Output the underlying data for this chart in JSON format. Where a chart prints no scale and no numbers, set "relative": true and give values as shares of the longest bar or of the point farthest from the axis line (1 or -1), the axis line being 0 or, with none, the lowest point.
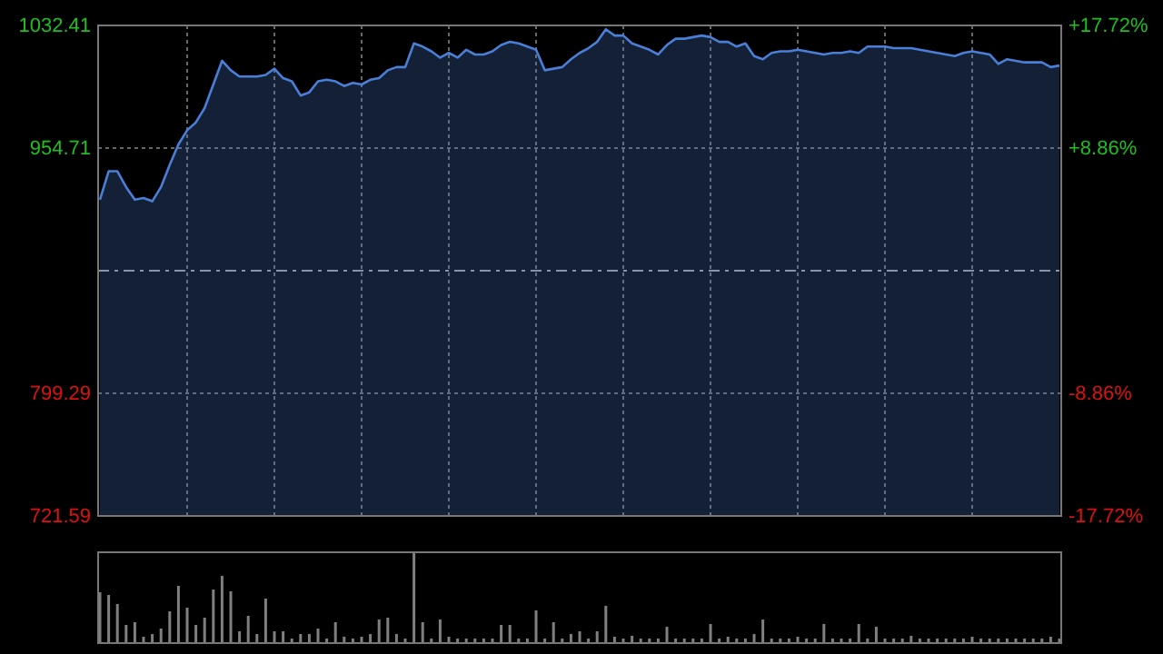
{
  "chart_data": [
    {
      "type": "area",
      "categories": [
        null,
        null,
        null,
        null,
        null,
        null,
        null,
        null,
        null,
        null,
        null,
        null,
        null,
        null,
        null,
        null,
        null,
        null,
        null,
        null,
        null,
        null,
        null,
        null,
        null,
        null,
        null,
        null,
        null,
        null,
        null,
        null,
        null,
        null,
        null,
        null,
        null,
        null,
        null,
        null,
        null,
        null,
        null,
        null,
        null,
        null,
        null,
        null,
        null,
        null,
        null,
        null,
        null,
        null,
        null,
        null,
        null,
        null,
        null,
        null,
        null,
        null,
        null,
        null,
        null,
        null,
        null,
        null,
        null,
        null,
        null,
        null,
        null,
        null,
        null,
        null,
        null,
        null,
        null,
        null,
        null,
        null,
        null,
        null,
        null,
        null,
        null,
        null,
        null,
        null,
        null,
        null,
        null,
        null,
        null,
        null,
        null,
        null,
        null,
        null,
        null,
        null,
        null,
        null,
        null,
        null,
        null,
        null,
        null,
        null,
        null
      ],
      "ylim": [
        721.59,
        1032.41
      ],
      "yticks": [
        721.59,
        799.29,
        954.71,
        1032.41
      ],
      "y2lim": [
        -17.72,
        17.72
      ],
      "y2ticks": [
        {
          "value": -17.72,
          "label": "-17.72%"
        },
        {
          "value": -8.86,
          "label": "-8.86%"
        },
        {
          "value": 8.86,
          "label": "+8.86%"
        },
        {
          "value": 17.72,
          "label": "+17.72%"
        }
      ],
      "grid": true,
      "tick_labels": "y",
      "ref_lines": [
        {
          "axis": "y",
          "value": 877.0,
          "color": "#9a9a9a",
          "line_style": "dashed"
        }
      ],
      "series": [
        {
          "color": "#4a7fd8",
          "values": [
            922,
            940,
            940,
            930,
            922,
            923,
            921,
            930,
            944,
            957,
            966,
            971,
            980,
            995,
            1010,
            1004,
            1000,
            1000,
            1000,
            1001,
            1005,
            999,
            997,
            988,
            990,
            997,
            998,
            997,
            994,
            996,
            995,
            998,
            999,
            1004,
            1006,
            1006,
            1021,
            1019,
            1016,
            1012,
            1015,
            1012,
            1017,
            1014,
            1014,
            1016,
            1020,
            1022,
            1021,
            1019,
            1017,
            1004,
            1005,
            1006,
            1011,
            1015,
            1018,
            1022,
            1030,
            1026,
            1026,
            1021,
            1019,
            1017,
            1014,
            1020,
            1024,
            1024,
            1025,
            1026,
            1025,
            1022,
            1022,
            1019,
            1021,
            1013,
            1011,
            1015,
            1016,
            1016,
            1017,
            1016,
            1015,
            1014,
            1015,
            1015,
            1016,
            1015,
            1019,
            1019,
            1019,
            1018,
            1018,
            1018,
            1017,
            1016,
            1015,
            1014,
            1013,
            1015,
            1016,
            1015,
            1014,
            1008,
            1011,
            1010,
            1009,
            1009,
            1009,
            1006,
            1007
          ]
        }
      ]
    },
    {
      "type": "bar",
      "relative": true,
      "tick_labels": false,
      "categories": [
        null,
        null,
        null,
        null,
        null,
        null,
        null,
        null,
        null,
        null,
        null,
        null,
        null,
        null,
        null,
        null,
        null,
        null,
        null,
        null,
        null,
        null,
        null,
        null,
        null,
        null,
        null,
        null,
        null,
        null,
        null,
        null,
        null,
        null,
        null,
        null,
        null,
        null,
        null,
        null,
        null,
        null,
        null,
        null,
        null,
        null,
        null,
        null,
        null,
        null,
        null,
        null,
        null,
        null,
        null,
        null,
        null,
        null,
        null,
        null,
        null,
        null,
        null,
        null,
        null,
        null,
        null,
        null,
        null,
        null,
        null,
        null,
        null,
        null,
        null,
        null,
        null,
        null,
        null,
        null,
        null,
        null,
        null,
        null,
        null,
        null,
        null,
        null,
        null,
        null,
        null,
        null,
        null,
        null,
        null,
        null,
        null,
        null,
        null,
        null,
        null,
        null,
        null,
        null,
        null,
        null,
        null,
        null,
        null,
        null,
        null
      ],
      "series": [
        {
          "color": "#808080",
          "values": [
            0.56,
            0.53,
            0.43,
            0.2,
            0.23,
            0.07,
            0.1,
            0.16,
            0.35,
            0.63,
            0.39,
            0.2,
            0.28,
            0.59,
            0.74,
            0.57,
            0.13,
            0.3,
            0.1,
            0.49,
            0.13,
            0.13,
            0.05,
            0.1,
            0.1,
            0.16,
            0.05,
            0.23,
            0.07,
            0.05,
            0.07,
            0.1,
            0.26,
            0.28,
            0.1,
            0.05,
            1,
            0.23,
            0.05,
            0.26,
            0.07,
            0.05,
            0.05,
            0.05,
            0.05,
            0.05,
            0.2,
            0.2,
            0.05,
            0.05,
            0.36,
            0.05,
            0.23,
            0.05,
            0.1,
            0.13,
            0.05,
            0.13,
            0.41,
            0.07,
            0.05,
            0.08,
            0.05,
            0.05,
            0.05,
            0.18,
            0.05,
            0.05,
            0.05,
            0.05,
            0.21,
            0.05,
            0.07,
            0.05,
            0.05,
            0.1,
            0.26,
            0.05,
            0.05,
            0.05,
            0.07,
            0.05,
            0.05,
            0.21,
            0.05,
            0.05,
            0.05,
            0.21,
            0.05,
            0.18,
            0.05,
            0.05,
            0.05,
            0.08,
            0.05,
            0.05,
            0.05,
            0.05,
            0.05,
            0.05,
            0.07,
            0.05,
            0.05,
            0.05,
            0.05,
            0.05,
            0.05,
            0.05,
            0.05,
            0.07,
            0.05
          ]
        }
      ]
    }
  ]
}
